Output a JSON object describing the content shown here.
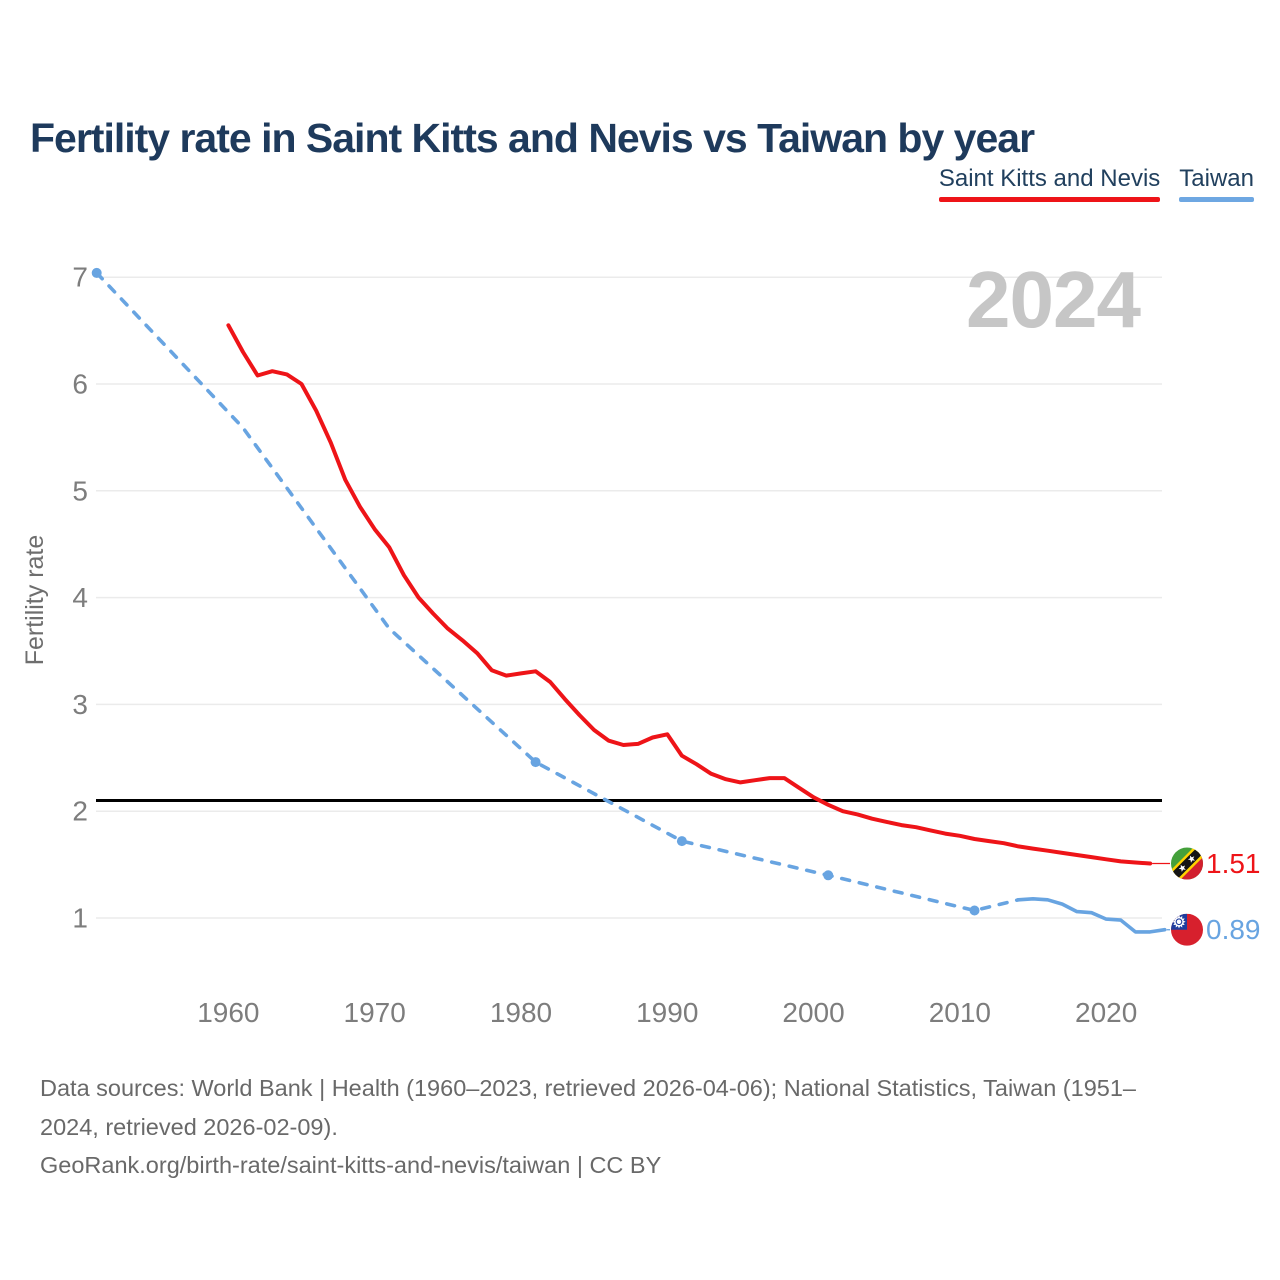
{
  "page": {
    "title": "Fertility rate in Saint Kitts and Nevis vs Taiwan by year"
  },
  "legend": {
    "items": [
      {
        "label": "Saint Kitts and Nevis",
        "color": "#ee1418"
      },
      {
        "label": "Taiwan",
        "color": "#6ea7e2"
      }
    ]
  },
  "footer": {
    "lines": [
      "Data sources: World Bank | Health (1960–2023, retrieved 2026-04-06); National Statistics, Taiwan (1951–",
      "2024, retrieved 2026-02-09).",
      "GeoRank.org/birth-rate/saint-kitts-and-nevis/taiwan | CC BY"
    ]
  },
  "chart_data": {
    "type": "line",
    "title": "Fertility rate in Saint Kitts and Nevis vs Taiwan by year",
    "xlabel": "",
    "ylabel": "Fertility rate",
    "watermark": "2024",
    "grid": "horizontal",
    "legend_position": "top-right",
    "x_ticks": [
      1960,
      1970,
      1980,
      1990,
      2000,
      2010,
      2020
    ],
    "y_ticks": [
      1,
      2,
      3,
      4,
      5,
      6,
      7
    ],
    "xlim": [
      1951,
      2024
    ],
    "ylim": [
      0.87,
      7.04
    ],
    "reference_line": {
      "value": 2.1,
      "color": "#000000"
    },
    "series": [
      {
        "name": "Saint Kitts and Nevis",
        "color": "#ee1418",
        "style": "solid",
        "end_label": "1.51",
        "flag": "saint-kitts-and-nevis",
        "x": [
          1960,
          1961,
          1962,
          1963,
          1964,
          1965,
          1966,
          1967,
          1968,
          1969,
          1970,
          1971,
          1972,
          1973,
          1974,
          1975,
          1976,
          1977,
          1978,
          1979,
          1980,
          1981,
          1982,
          1983,
          1984,
          1985,
          1986,
          1987,
          1988,
          1989,
          1990,
          1991,
          1992,
          1993,
          1994,
          1995,
          1996,
          1997,
          1998,
          1999,
          2000,
          2001,
          2002,
          2003,
          2004,
          2005,
          2006,
          2007,
          2008,
          2009,
          2010,
          2011,
          2012,
          2013,
          2014,
          2015,
          2016,
          2017,
          2018,
          2019,
          2020,
          2021,
          2022,
          2023
        ],
        "values": [
          6.55,
          6.3,
          6.08,
          6.12,
          6.09,
          6.0,
          5.75,
          5.45,
          5.1,
          4.85,
          4.64,
          4.47,
          4.21,
          4.0,
          3.85,
          3.71,
          3.6,
          3.48,
          3.32,
          3.27,
          3.29,
          3.31,
          3.21,
          3.05,
          2.9,
          2.76,
          2.66,
          2.62,
          2.63,
          2.69,
          2.72,
          2.52,
          2.44,
          2.35,
          2.3,
          2.27,
          2.29,
          2.31,
          2.31,
          2.22,
          2.13,
          2.06,
          2.0,
          1.97,
          1.93,
          1.9,
          1.87,
          1.85,
          1.82,
          1.79,
          1.77,
          1.74,
          1.72,
          1.7,
          1.67,
          1.65,
          1.63,
          1.61,
          1.59,
          1.57,
          1.55,
          1.53,
          1.52,
          1.51
        ]
      },
      {
        "name": "Taiwan",
        "color": "#68a4e1",
        "style": "dashed",
        "solid_from": 2014,
        "marker_years": [
          1951,
          1981,
          1991,
          2001,
          2011
        ],
        "end_label": "0.89",
        "flag": "taiwan",
        "x": [
          1951,
          1961,
          1971,
          1981,
          1991,
          2001,
          2011,
          2014,
          2015,
          2016,
          2017,
          2018,
          2019,
          2020,
          2021,
          2022,
          2023,
          2024
        ],
        "values": [
          7.04,
          5.59,
          3.71,
          2.46,
          1.72,
          1.4,
          1.07,
          1.17,
          1.18,
          1.17,
          1.13,
          1.06,
          1.05,
          0.99,
          0.98,
          0.87,
          0.87,
          0.89
        ]
      }
    ]
  }
}
